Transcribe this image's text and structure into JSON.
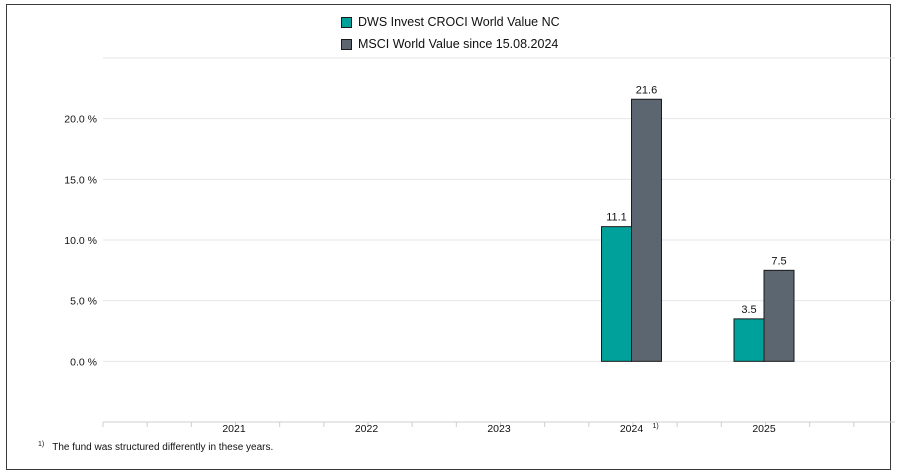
{
  "chart_data": {
    "type": "bar",
    "categories": [
      "2021",
      "2022",
      "2023",
      "2024",
      "2025"
    ],
    "category_marks": [
      "",
      "",
      "",
      "1)",
      ""
    ],
    "series": [
      {
        "name": "DWS Invest CROCI World Value NC",
        "color": "#00a19b",
        "values": [
          null,
          null,
          null,
          11.1,
          3.5
        ]
      },
      {
        "name": "MSCI World Value since 15.08.2024",
        "color": "#5b6670",
        "values": [
          null,
          null,
          null,
          21.6,
          7.5
        ]
      }
    ],
    "data_labels": [
      [
        null,
        null,
        null,
        "11.1",
        "3.5"
      ],
      [
        null,
        null,
        null,
        "21.6",
        "7.5"
      ]
    ],
    "yticks": [
      0,
      5,
      10,
      15,
      20
    ],
    "ytick_labels": [
      "0.0 %",
      "5.0 %",
      "10.0 %",
      "15.0 %",
      "20.0 %"
    ],
    "ylim": [
      -5,
      25
    ],
    "grid": true,
    "legend_position": "top-center",
    "title": "",
    "xlabel": "",
    "ylabel": ""
  },
  "footnote": {
    "marker": "1)",
    "text": "The fund was structured differently in these years."
  }
}
